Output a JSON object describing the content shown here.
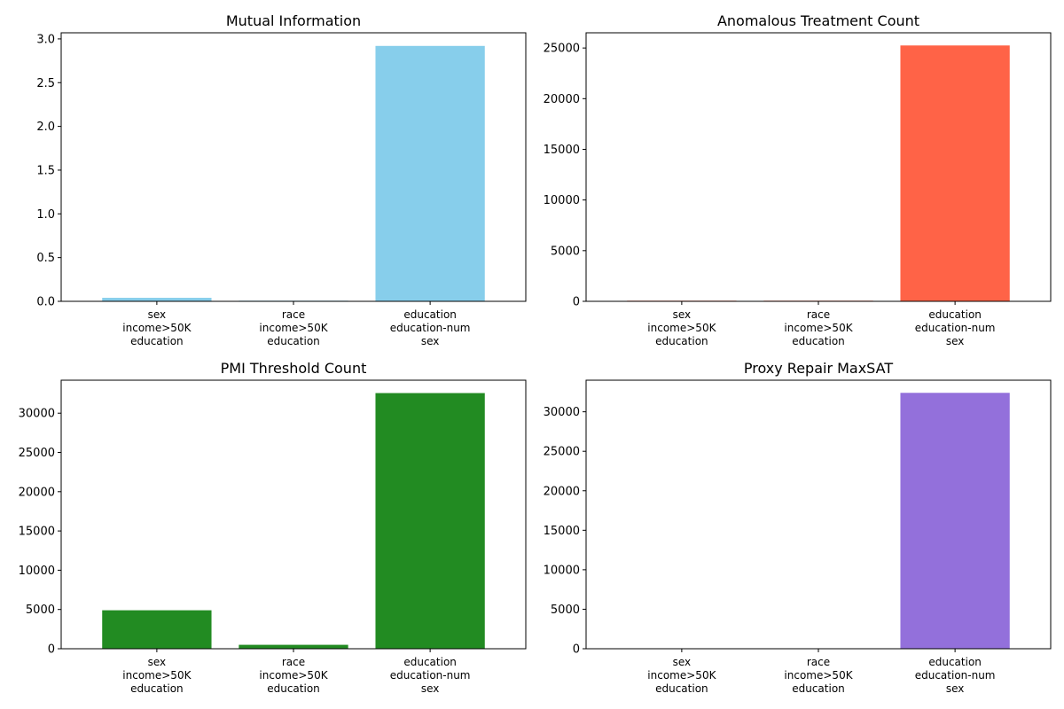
{
  "chart_data": [
    {
      "type": "bar",
      "title": "Mutual Information",
      "color": "#87CEEB",
      "categories": [
        [
          "sex",
          "income>50K",
          "education"
        ],
        [
          "race",
          "income>50K",
          "education"
        ],
        [
          "education",
          "education-num",
          "sex"
        ]
      ],
      "values": [
        0.04,
        0.007,
        2.92
      ],
      "ylim": [
        0,
        3.07
      ],
      "yticks": [
        0.0,
        0.5,
        1.0,
        1.5,
        2.0,
        2.5,
        3.0
      ],
      "ytick_labels": [
        "0.0",
        "0.5",
        "1.0",
        "1.5",
        "2.0",
        "2.5",
        "3.0"
      ]
    },
    {
      "type": "bar",
      "title": "Anomalous Treatment Count",
      "color": "#FF6347",
      "categories": [
        [
          "sex",
          "income>50K",
          "education"
        ],
        [
          "race",
          "income>50K",
          "education"
        ],
        [
          "education",
          "education-num",
          "sex"
        ]
      ],
      "values": [
        60,
        60,
        25250
      ],
      "ylim": [
        0,
        26500
      ],
      "yticks": [
        0,
        5000,
        10000,
        15000,
        20000,
        25000
      ],
      "ytick_labels": [
        "0",
        "5000",
        "10000",
        "15000",
        "20000",
        "25000"
      ]
    },
    {
      "type": "bar",
      "title": "PMI Threshold Count",
      "color": "#228B22",
      "categories": [
        [
          "sex",
          "income>50K",
          "education"
        ],
        [
          "race",
          "income>50K",
          "education"
        ],
        [
          "education",
          "education-num",
          "sex"
        ]
      ],
      "values": [
        4900,
        500,
        32561
      ],
      "ylim": [
        0,
        34200
      ],
      "yticks": [
        0,
        5000,
        10000,
        15000,
        20000,
        25000,
        30000
      ],
      "ytick_labels": [
        "0",
        "5000",
        "10000",
        "15000",
        "20000",
        "25000",
        "30000"
      ]
    },
    {
      "type": "bar",
      "title": "Proxy Repair MaxSAT",
      "color": "#9370DB",
      "categories": [
        [
          "sex",
          "income>50K",
          "education"
        ],
        [
          "race",
          "income>50K",
          "education"
        ],
        [
          "education",
          "education-num",
          "sex"
        ]
      ],
      "values": [
        0,
        0,
        32400
      ],
      "ylim": [
        0,
        34000
      ],
      "yticks": [
        0,
        5000,
        10000,
        15000,
        20000,
        25000,
        30000
      ],
      "ytick_labels": [
        "0",
        "5000",
        "10000",
        "15000",
        "20000",
        "25000",
        "30000"
      ]
    }
  ]
}
